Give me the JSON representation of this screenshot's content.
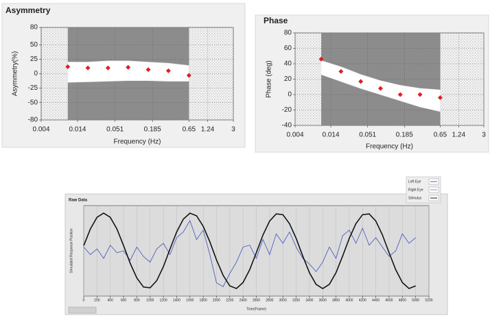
{
  "chart_data": [
    {
      "type": "scatter",
      "title": "Asymmetry",
      "x_label": "Frequency (Hz)",
      "y_label": "Asymmetry(%)",
      "xlog": true,
      "xlim": [
        0.004,
        3
      ],
      "xticks": [
        0.004,
        0.014,
        0.051,
        0.185,
        0.65,
        1.24,
        3
      ],
      "ylim": [
        -80,
        80
      ],
      "yticks": [
        80,
        50,
        25,
        0,
        -25,
        -50,
        -80
      ],
      "grid": true,
      "span": [
        0.01,
        0.65
      ],
      "x": [
        0.01,
        0.02,
        0.04,
        0.08,
        0.16,
        0.32,
        0.65
      ],
      "band": {
        "upper": [
          20,
          20,
          22,
          22,
          20,
          18,
          14
        ],
        "lower": [
          -15,
          -14,
          -13,
          -12,
          -12,
          -13,
          -13
        ]
      },
      "series": [
        {
          "color": "#e02020",
          "values": [
            12,
            10,
            10,
            11,
            7,
            5,
            -3
          ]
        }
      ]
    },
    {
      "type": "scatter",
      "title": "Phase",
      "x_label": "Frequency (Hz)",
      "y_label": "Phase (deg)",
      "xlog": true,
      "xlim": [
        0.004,
        3
      ],
      "xticks": [
        0.004,
        0.014,
        0.051,
        0.185,
        0.65,
        1.24,
        3
      ],
      "ylim": [
        -40,
        80
      ],
      "yticks": [
        80,
        60,
        40,
        20,
        0,
        -20,
        -40
      ],
      "grid": true,
      "span": [
        0.01,
        0.65
      ],
      "x": [
        0.01,
        0.02,
        0.04,
        0.08,
        0.16,
        0.32,
        0.65
      ],
      "band": {
        "upper": [
          44,
          36,
          26,
          18,
          12,
          8,
          6
        ],
        "lower": [
          26,
          17,
          8,
          0,
          -8,
          -16,
          -22
        ]
      },
      "series": [
        {
          "color": "#e02020",
          "values": [
            46,
            30,
            17,
            8,
            0,
            0,
            -4
          ]
        }
      ]
    },
    {
      "type": "line",
      "title": "Raw Data",
      "x_label": "Time(Frame)",
      "y_label": "Simulated Response Position",
      "xlim": [
        0,
        5200
      ],
      "xticks": [
        0,
        200,
        400,
        600,
        800,
        1000,
        1200,
        1400,
        1600,
        1800,
        2000,
        2200,
        2400,
        2600,
        2800,
        3000,
        3200,
        3400,
        3600,
        3800,
        4000,
        4200,
        4400,
        4600,
        4800,
        5000,
        5200
      ],
      "ylim": [
        -1.2,
        1.2
      ],
      "grid": true,
      "legend": "top-right",
      "x": [
        0,
        100,
        200,
        300,
        400,
        500,
        600,
        700,
        800,
        900,
        1000,
        1100,
        1200,
        1300,
        1400,
        1500,
        1600,
        1700,
        1800,
        1900,
        2000,
        2100,
        2200,
        2300,
        2400,
        2500,
        2600,
        2700,
        2800,
        2900,
        3000,
        3100,
        3200,
        3300,
        3400,
        3500,
        3600,
        3700,
        3800,
        3900,
        4000,
        4100,
        4200,
        4300,
        4400,
        4500,
        4600,
        4700,
        4800,
        4900,
        5000
      ],
      "series": [
        {
          "name": "Left Eye",
          "color": "#4a5fc0",
          "values": [
            0.1,
            -0.1,
            0.05,
            -0.2,
            0.15,
            -0.05,
            0.0,
            -0.25,
            0.1,
            -0.15,
            -0.3,
            0.05,
            0.2,
            -0.1,
            0.35,
            0.5,
            0.8,
            0.3,
            0.55,
            -0.1,
            -0.85,
            -0.95,
            -0.6,
            -0.3,
            0.1,
            0.15,
            -0.2,
            0.3,
            -0.1,
            0.45,
            0.2,
            0.5,
            0.1,
            -0.2,
            -0.35,
            -0.55,
            -0.3,
            0.1,
            -0.2,
            0.4,
            0.55,
            0.2,
            0.6,
            0.15,
            0.35,
            0.1,
            -0.15,
            0.0,
            0.45,
            0.2,
            0.35
          ]
        },
        {
          "name": "Right Eye",
          "color": "#8090d0",
          "values": [
            null,
            null,
            null,
            null,
            null,
            null,
            null,
            null,
            null,
            null,
            null,
            null,
            null,
            null,
            null,
            null,
            null,
            null,
            null,
            null,
            null,
            null,
            null,
            null,
            null,
            null,
            null,
            null,
            null,
            null,
            null,
            null,
            null,
            null,
            null,
            null,
            null,
            null,
            null,
            null,
            null,
            null,
            null,
            null,
            null,
            null,
            null,
            null,
            null,
            null,
            null
          ]
        },
        {
          "name": "Stimulus",
          "color": "#111111",
          "values": [
            0.14,
            0.58,
            0.89,
            1.0,
            0.89,
            0.58,
            0.14,
            -0.33,
            -0.72,
            -0.96,
            -0.98,
            -0.79,
            -0.42,
            0.05,
            0.5,
            0.84,
            1.0,
            0.93,
            0.65,
            0.24,
            -0.24,
            -0.65,
            -0.93,
            -1.0,
            -0.84,
            -0.5,
            -0.05,
            0.42,
            0.79,
            0.98,
            0.96,
            0.72,
            0.33,
            -0.14,
            -0.58,
            -0.89,
            -1.0,
            -0.89,
            -0.58,
            -0.14,
            0.33,
            0.72,
            0.96,
            0.98,
            0.79,
            0.42,
            -0.05,
            -0.5,
            -0.84,
            -1.0,
            -0.93
          ]
        }
      ]
    }
  ]
}
